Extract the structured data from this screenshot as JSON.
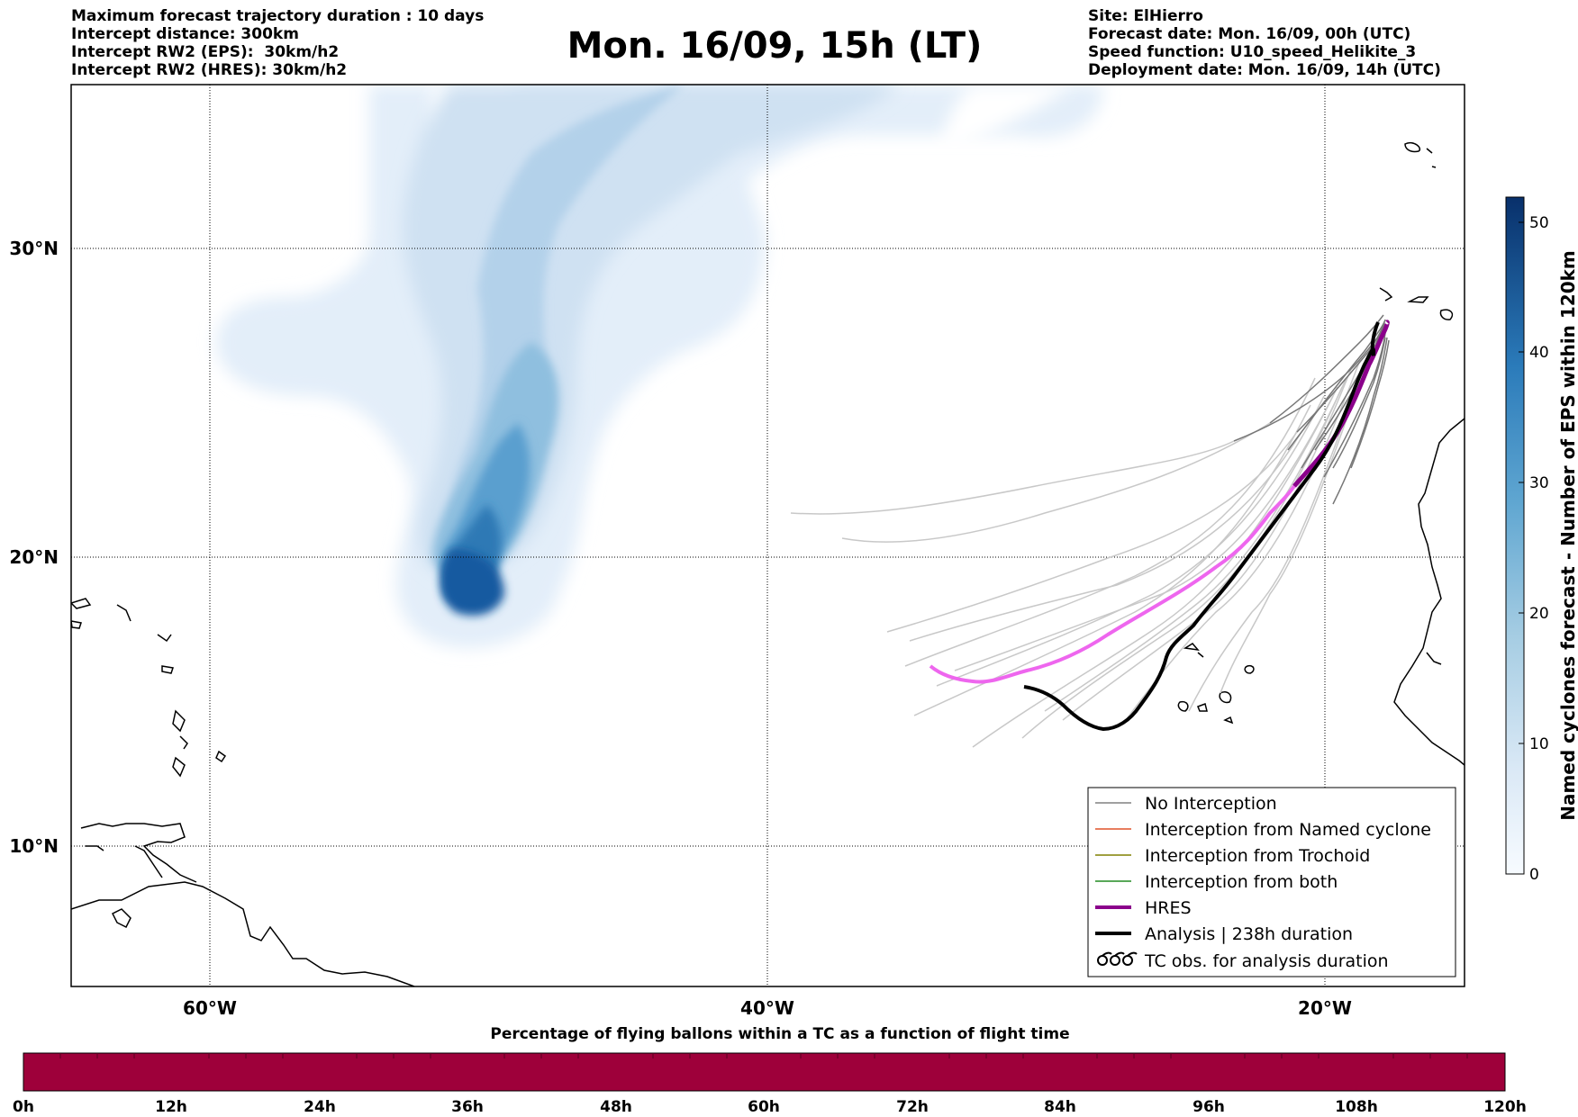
{
  "header": {
    "left": [
      "Maximum forecast trajectory duration : 10 days",
      "Intercept distance: 300km",
      "Intercept RW2 (EPS):  30km/h2",
      "Intercept RW2 (HRES): 30km/h2"
    ],
    "title": "Mon. 16/09, 15h (LT)",
    "right": [
      "Site: ElHierro",
      "Forecast date: Mon. 16/09, 00h (UTC)",
      "Speed function: U10_speed_Helikite_3",
      "Deployment date: Mon. 16/09, 14h (UTC)"
    ]
  },
  "map": {
    "lon_range": [
      -65,
      -15
    ],
    "lat_range": [
      5.3,
      34.7
    ],
    "lon_labels": [
      "60°W",
      "40°W",
      "20°W"
    ],
    "lat_labels": [
      "30°N",
      "20°N",
      "10°N"
    ],
    "colors": {
      "hres": "#8b008b",
      "hres_light": "#ee66ee",
      "analysis": "#000000",
      "no_interception": "#808080"
    }
  },
  "legend": {
    "items": [
      {
        "label": "No Interception",
        "color": "#808080"
      },
      {
        "label": "Interception from Named cyclone",
        "color": "#e0522a"
      },
      {
        "label": "Interception from Trochoid",
        "color": "#808000"
      },
      {
        "label": "Interception from both",
        "color": "#228b22"
      },
      {
        "label": "HRES",
        "color": "#8b008b"
      },
      {
        "label": "Analysis | 238h duration",
        "color": "#000000"
      },
      {
        "label": "TC obs. for analysis duration",
        "icon": "tc-symbol-icon"
      }
    ]
  },
  "colorbar": {
    "label": "Named cyclones forecast - Number of EPS within 120km",
    "ticks": [
      "0",
      "10",
      "20",
      "30",
      "40",
      "50"
    ]
  },
  "bottom_bar": {
    "title": "Percentage of flying ballons within a TC as a function of flight time",
    "ticks": [
      "0h",
      "12h",
      "24h",
      "36h",
      "48h",
      "60h",
      "72h",
      "84h",
      "96h",
      "108h",
      "120h"
    ],
    "color": "#9e003a"
  }
}
